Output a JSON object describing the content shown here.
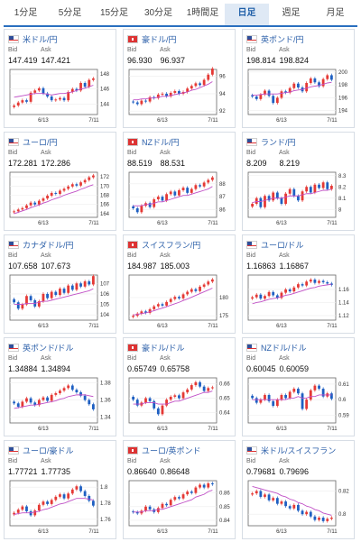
{
  "tabs": [
    {
      "label": "1分足",
      "active": false
    },
    {
      "label": "5分足",
      "active": false
    },
    {
      "label": "15分足",
      "active": false
    },
    {
      "label": "30分足",
      "active": false
    },
    {
      "label": "1時間足",
      "active": false
    },
    {
      "label": "日足",
      "active": true
    },
    {
      "label": "週足",
      "active": false
    },
    {
      "label": "月足",
      "active": false
    }
  ],
  "labels": {
    "bid": "Bid",
    "ask": "Ask"
  },
  "colors": {
    "up": "#e53935",
    "down": "#1e5fc2",
    "ma": "#c04fc6",
    "accent": "#2a6fbf"
  },
  "chart_data": [
    {
      "type": "line",
      "title": "米ドル/円",
      "bid": "147.419",
      "ask": "147.421",
      "x_ticks": [
        "6/13",
        "7/11"
      ],
      "y_ticks": [
        "144",
        "146",
        "148"
      ],
      "ylim": [
        142.6,
        148.6
      ],
      "series": [
        {
          "values": [
            143.8,
            144.2,
            144.5,
            144.3,
            145.5,
            145.8,
            146.1,
            145.4,
            145.0,
            144.5,
            144.6,
            144.8,
            144.5,
            145.6,
            146.0,
            145.8,
            146.8,
            146.3,
            147.2,
            147.4
          ]
        }
      ],
      "ma": [
        144.9,
        145.0,
        145.1,
        145.2,
        145.3,
        145.4,
        145.4,
        145.4,
        145.3,
        145.2,
        145.3,
        145.4,
        145.4,
        145.5,
        145.6,
        145.8,
        146.0,
        146.1,
        146.3,
        146.5
      ]
    },
    {
      "type": "line",
      "title": "豪ドル/円",
      "bid": "96.930",
      "ask": "96.937",
      "x_ticks": [
        "6/13",
        "7/11"
      ],
      "y_ticks": [
        "92",
        "94",
        "96"
      ],
      "ylim": [
        91.6,
        96.8
      ],
      "series": [
        {
          "values": [
            93.0,
            92.8,
            93.2,
            93.1,
            93.6,
            93.5,
            93.9,
            94.0,
            93.7,
            94.1,
            94.3,
            94.0,
            94.2,
            94.6,
            94.9,
            95.2,
            95.0,
            95.6,
            96.2,
            96.9
          ]
        }
      ],
      "ma": [
        93.3,
        93.3,
        93.4,
        93.4,
        93.5,
        93.5,
        93.6,
        93.7,
        93.7,
        93.8,
        93.9,
        94.0,
        94.1,
        94.2,
        94.4,
        94.5,
        94.7,
        94.9,
        95.1,
        95.4
      ]
    },
    {
      "type": "line",
      "title": "英ポンド/円",
      "bid": "198.814",
      "ask": "198.824",
      "x_ticks": [
        "6/13",
        "7/11"
      ],
      "y_ticks": [
        "194",
        "196",
        "198",
        "200"
      ],
      "ylim": [
        193.4,
        200.4
      ],
      "series": [
        {
          "values": [
            196.2,
            195.8,
            196.5,
            197.1,
            196.3,
            195.2,
            196.0,
            197.0,
            196.8,
            197.5,
            198.2,
            197.6,
            197.0,
            198.3,
            199.0,
            198.4,
            197.8,
            198.9,
            199.5,
            198.8
          ]
        }
      ],
      "ma": [
        196.4,
        196.4,
        196.5,
        196.6,
        196.6,
        196.6,
        196.6,
        196.7,
        196.8,
        196.9,
        197.1,
        197.2,
        197.3,
        197.5,
        197.7,
        197.8,
        197.9,
        198.1,
        198.3,
        198.4
      ]
    },
    {
      "type": "line",
      "title": "ユーロ/円",
      "bid": "172.281",
      "ask": "172.286",
      "x_ticks": [
        "6/13",
        "7/11"
      ],
      "y_ticks": [
        "164",
        "166",
        "168",
        "170",
        "172"
      ],
      "ylim": [
        163.2,
        173.0
      ],
      "series": [
        {
          "values": [
            164.5,
            164.9,
            165.2,
            165.8,
            166.4,
            166.0,
            166.8,
            167.3,
            167.9,
            168.5,
            168.3,
            169.0,
            169.4,
            169.9,
            170.4,
            170.1,
            170.8,
            171.3,
            171.9,
            172.3
          ]
        }
      ],
      "ma": [
        164.0,
        164.3,
        164.6,
        164.9,
        165.3,
        165.6,
        165.9,
        166.3,
        166.6,
        167.0,
        167.3,
        167.6,
        168.0,
        168.3,
        168.6,
        168.9,
        169.3,
        169.6,
        170.0,
        170.3
      ]
    },
    {
      "type": "line",
      "title": "NZドル/円",
      "bid": "88.519",
      "ask": "88.531",
      "x_ticks": [
        "6/13",
        "7/11"
      ],
      "y_ticks": [
        "86",
        "87",
        "88"
      ],
      "ylim": [
        85.4,
        88.9
      ],
      "series": [
        {
          "values": [
            86.1,
            85.8,
            86.3,
            86.5,
            86.2,
            86.8,
            87.0,
            86.7,
            87.2,
            87.4,
            87.1,
            87.5,
            87.7,
            87.3,
            87.6,
            87.9,
            87.8,
            88.1,
            88.3,
            88.5
          ]
        }
      ],
      "ma": [
        86.3,
        86.3,
        86.3,
        86.4,
        86.4,
        86.5,
        86.6,
        86.6,
        86.7,
        86.8,
        86.9,
        87.0,
        87.1,
        87.1,
        87.2,
        87.3,
        87.4,
        87.5,
        87.6,
        87.8
      ]
    },
    {
      "type": "line",
      "title": "ランド/円",
      "bid": "8.209",
      "ask": "8.219",
      "x_ticks": [
        "6/13",
        "7/11"
      ],
      "y_ticks": [
        "8",
        "8.1",
        "8.2",
        "8.3"
      ],
      "ylim": [
        7.93,
        8.33
      ],
      "series": [
        {
          "values": [
            8.05,
            8.1,
            8.02,
            8.12,
            8.08,
            8.15,
            8.1,
            8.05,
            8.14,
            8.18,
            8.12,
            8.08,
            8.16,
            8.2,
            8.15,
            8.22,
            8.19,
            8.24,
            8.18,
            8.21
          ]
        }
      ],
      "ma": [
        8.06,
        8.07,
        8.07,
        8.08,
        8.09,
        8.1,
        8.1,
        8.1,
        8.11,
        8.12,
        8.12,
        8.12,
        8.13,
        8.14,
        8.14,
        8.15,
        8.16,
        8.17,
        8.17,
        8.18
      ]
    },
    {
      "type": "line",
      "title": "カナダドル/円",
      "bid": "107.658",
      "ask": "107.673",
      "x_ticks": [
        "6/13",
        "7/11"
      ],
      "y_ticks": [
        "104",
        "105",
        "106",
        "107"
      ],
      "ylim": [
        103.5,
        107.8
      ],
      "series": [
        {
          "values": [
            105.2,
            104.6,
            105.0,
            105.8,
            105.4,
            104.8,
            105.3,
            106.0,
            105.6,
            106.2,
            105.9,
            106.5,
            106.1,
            106.8,
            106.4,
            107.0,
            106.7,
            107.2,
            106.9,
            107.7
          ]
        }
      ],
      "ma": [
        105.0,
        105.0,
        105.0,
        105.1,
        105.1,
        105.1,
        105.2,
        105.3,
        105.3,
        105.4,
        105.5,
        105.6,
        105.7,
        105.8,
        105.9,
        106.0,
        106.1,
        106.2,
        106.3,
        106.5
      ]
    },
    {
      "type": "line",
      "title": "スイスフラン/円",
      "bid": "184.987",
      "ask": "185.003",
      "x_ticks": [
        "6/13",
        "7/11"
      ],
      "y_ticks": [
        "175",
        "180"
      ],
      "ylim": [
        173.8,
        186.2
      ],
      "series": [
        {
          "values": [
            175.0,
            175.6,
            176.2,
            175.8,
            176.8,
            177.6,
            178.2,
            177.8,
            178.8,
            179.6,
            180.2,
            179.8,
            180.9,
            181.6,
            182.3,
            181.8,
            183.0,
            183.6,
            184.4,
            185.0
          ]
        }
      ],
      "ma": [
        175.2,
        175.4,
        175.6,
        175.8,
        176.1,
        176.4,
        176.8,
        177.1,
        177.5,
        177.9,
        178.3,
        178.7,
        179.2,
        179.6,
        180.1,
        180.6,
        181.1,
        181.6,
        182.1,
        182.6
      ]
    },
    {
      "type": "line",
      "title": "ユーロ/ドル",
      "bid": "1.16863",
      "ask": "1.16867",
      "x_ticks": [
        "6/13",
        "7/11"
      ],
      "y_ticks": [
        "1.12",
        "1.14",
        "1.16"
      ],
      "ylim": [
        1.113,
        1.182
      ],
      "series": [
        {
          "values": [
            1.148,
            1.152,
            1.146,
            1.15,
            1.156,
            1.151,
            1.147,
            1.155,
            1.16,
            1.157,
            1.163,
            1.168,
            1.166,
            1.172,
            1.175,
            1.17,
            1.173,
            1.171,
            1.169,
            1.167
          ]
        }
      ],
      "ma": [
        1.138,
        1.14,
        1.141,
        1.143,
        1.145,
        1.146,
        1.147,
        1.149,
        1.151,
        1.152,
        1.154,
        1.156,
        1.158,
        1.16,
        1.162,
        1.163,
        1.165,
        1.166,
        1.167,
        1.168
      ]
    },
    {
      "type": "line",
      "title": "英ポンド/ドル",
      "bid": "1.34884",
      "ask": "1.34894",
      "x_ticks": [
        "6/13",
        "7/11"
      ],
      "y_ticks": [
        "1.34",
        "1.36",
        "1.38"
      ],
      "ylim": [
        1.333,
        1.386
      ],
      "series": [
        {
          "values": [
            1.356,
            1.352,
            1.358,
            1.362,
            1.357,
            1.354,
            1.36,
            1.363,
            1.359,
            1.366,
            1.368,
            1.371,
            1.374,
            1.377,
            1.372,
            1.369,
            1.365,
            1.36,
            1.355,
            1.349
          ]
        }
      ],
      "ma": [
        1.35,
        1.351,
        1.352,
        1.353,
        1.354,
        1.354,
        1.355,
        1.356,
        1.357,
        1.358,
        1.359,
        1.361,
        1.362,
        1.364,
        1.365,
        1.366,
        1.366,
        1.366,
        1.365,
        1.364
      ]
    },
    {
      "type": "line",
      "title": "豪ドル/ドル",
      "bid": "0.65749",
      "ask": "0.65758",
      "x_ticks": [
        "6/13",
        "7/11"
      ],
      "y_ticks": [
        "0.64",
        "0.65",
        "0.66"
      ],
      "ylim": [
        0.633,
        0.664
      ],
      "series": [
        {
          "values": [
            0.649,
            0.645,
            0.647,
            0.65,
            0.648,
            0.643,
            0.639,
            0.645,
            0.649,
            0.651,
            0.652,
            0.65,
            0.654,
            0.656,
            0.659,
            0.661,
            0.658,
            0.655,
            0.657,
            0.6575
          ]
        }
      ],
      "ma": [
        0.646,
        0.646,
        0.646,
        0.647,
        0.647,
        0.647,
        0.646,
        0.646,
        0.646,
        0.647,
        0.648,
        0.648,
        0.649,
        0.65,
        0.651,
        0.652,
        0.653,
        0.654,
        0.654,
        0.655
      ]
    },
    {
      "type": "line",
      "title": "NZドル/ドル",
      "bid": "0.60045",
      "ask": "0.60059",
      "x_ticks": [
        "6/13",
        "7/11"
      ],
      "y_ticks": [
        "0.59",
        "0.6",
        "0.61"
      ],
      "ylim": [
        0.585,
        0.614
      ],
      "series": [
        {
          "values": [
            0.601,
            0.598,
            0.6,
            0.603,
            0.599,
            0.596,
            0.6,
            0.603,
            0.601,
            0.605,
            0.607,
            0.604,
            0.594,
            0.6,
            0.606,
            0.609,
            0.607,
            0.602,
            0.604,
            0.6005
          ]
        }
      ],
      "ma": [
        0.6,
        0.6,
        0.6,
        0.6,
        0.6,
        0.6,
        0.6,
        0.6,
        0.6,
        0.601,
        0.601,
        0.602,
        0.601,
        0.601,
        0.602,
        0.602,
        0.603,
        0.603,
        0.603,
        0.603
      ]
    },
    {
      "type": "line",
      "title": "ユーロ/豪ドル",
      "bid": "1.77721",
      "ask": "1.77735",
      "x_ticks": [
        "6/13",
        "7/11"
      ],
      "y_ticks": [
        "1.76",
        "1.78",
        "1.8"
      ],
      "ylim": [
        1.752,
        1.808
      ],
      "series": [
        {
          "values": [
            1.768,
            1.772,
            1.776,
            1.77,
            1.765,
            1.771,
            1.778,
            1.782,
            1.779,
            1.784,
            1.788,
            1.791,
            1.786,
            1.792,
            1.797,
            1.801,
            1.795,
            1.789,
            1.783,
            1.777
          ]
        }
      ],
      "ma": [
        1.766,
        1.767,
        1.768,
        1.768,
        1.768,
        1.769,
        1.77,
        1.772,
        1.773,
        1.775,
        1.777,
        1.779,
        1.78,
        1.782,
        1.784,
        1.786,
        1.786,
        1.786,
        1.785,
        1.784
      ]
    },
    {
      "type": "line",
      "title": "ユーロ/英ポンド",
      "bid": "0.86640",
      "ask": "0.86648",
      "x_ticks": [
        "6/13",
        "7/11"
      ],
      "y_ticks": [
        "0.84",
        "0.85",
        "0.86"
      ],
      "ylim": [
        0.836,
        0.869
      ],
      "series": [
        {
          "values": [
            0.846,
            0.845,
            0.847,
            0.85,
            0.848,
            0.846,
            0.849,
            0.852,
            0.851,
            0.855,
            0.857,
            0.856,
            0.859,
            0.861,
            0.86,
            0.864,
            0.866,
            0.864,
            0.867,
            0.8664
          ]
        }
      ],
      "ma": [
        0.846,
        0.846,
        0.846,
        0.847,
        0.847,
        0.847,
        0.848,
        0.848,
        0.849,
        0.85,
        0.851,
        0.852,
        0.853,
        0.854,
        0.855,
        0.857,
        0.858,
        0.859,
        0.861,
        0.862
      ]
    },
    {
      "type": "line",
      "title": "米ドル/スイスフラン",
      "bid": "0.79681",
      "ask": "0.79696",
      "x_ticks": [
        "6/13",
        "7/11"
      ],
      "y_ticks": [
        "0.8",
        "0.82"
      ],
      "ylim": [
        0.79,
        0.829
      ],
      "series": [
        {
          "values": [
            0.818,
            0.82,
            0.815,
            0.817,
            0.812,
            0.814,
            0.809,
            0.811,
            0.807,
            0.805,
            0.808,
            0.803,
            0.8,
            0.802,
            0.798,
            0.795,
            0.797,
            0.794,
            0.796,
            0.797
          ]
        }
      ],
      "ma": [
        0.824,
        0.823,
        0.822,
        0.821,
        0.82,
        0.819,
        0.818,
        0.816,
        0.815,
        0.813,
        0.812,
        0.81,
        0.809,
        0.807,
        0.806,
        0.804,
        0.803,
        0.801,
        0.8,
        0.799
      ]
    }
  ]
}
